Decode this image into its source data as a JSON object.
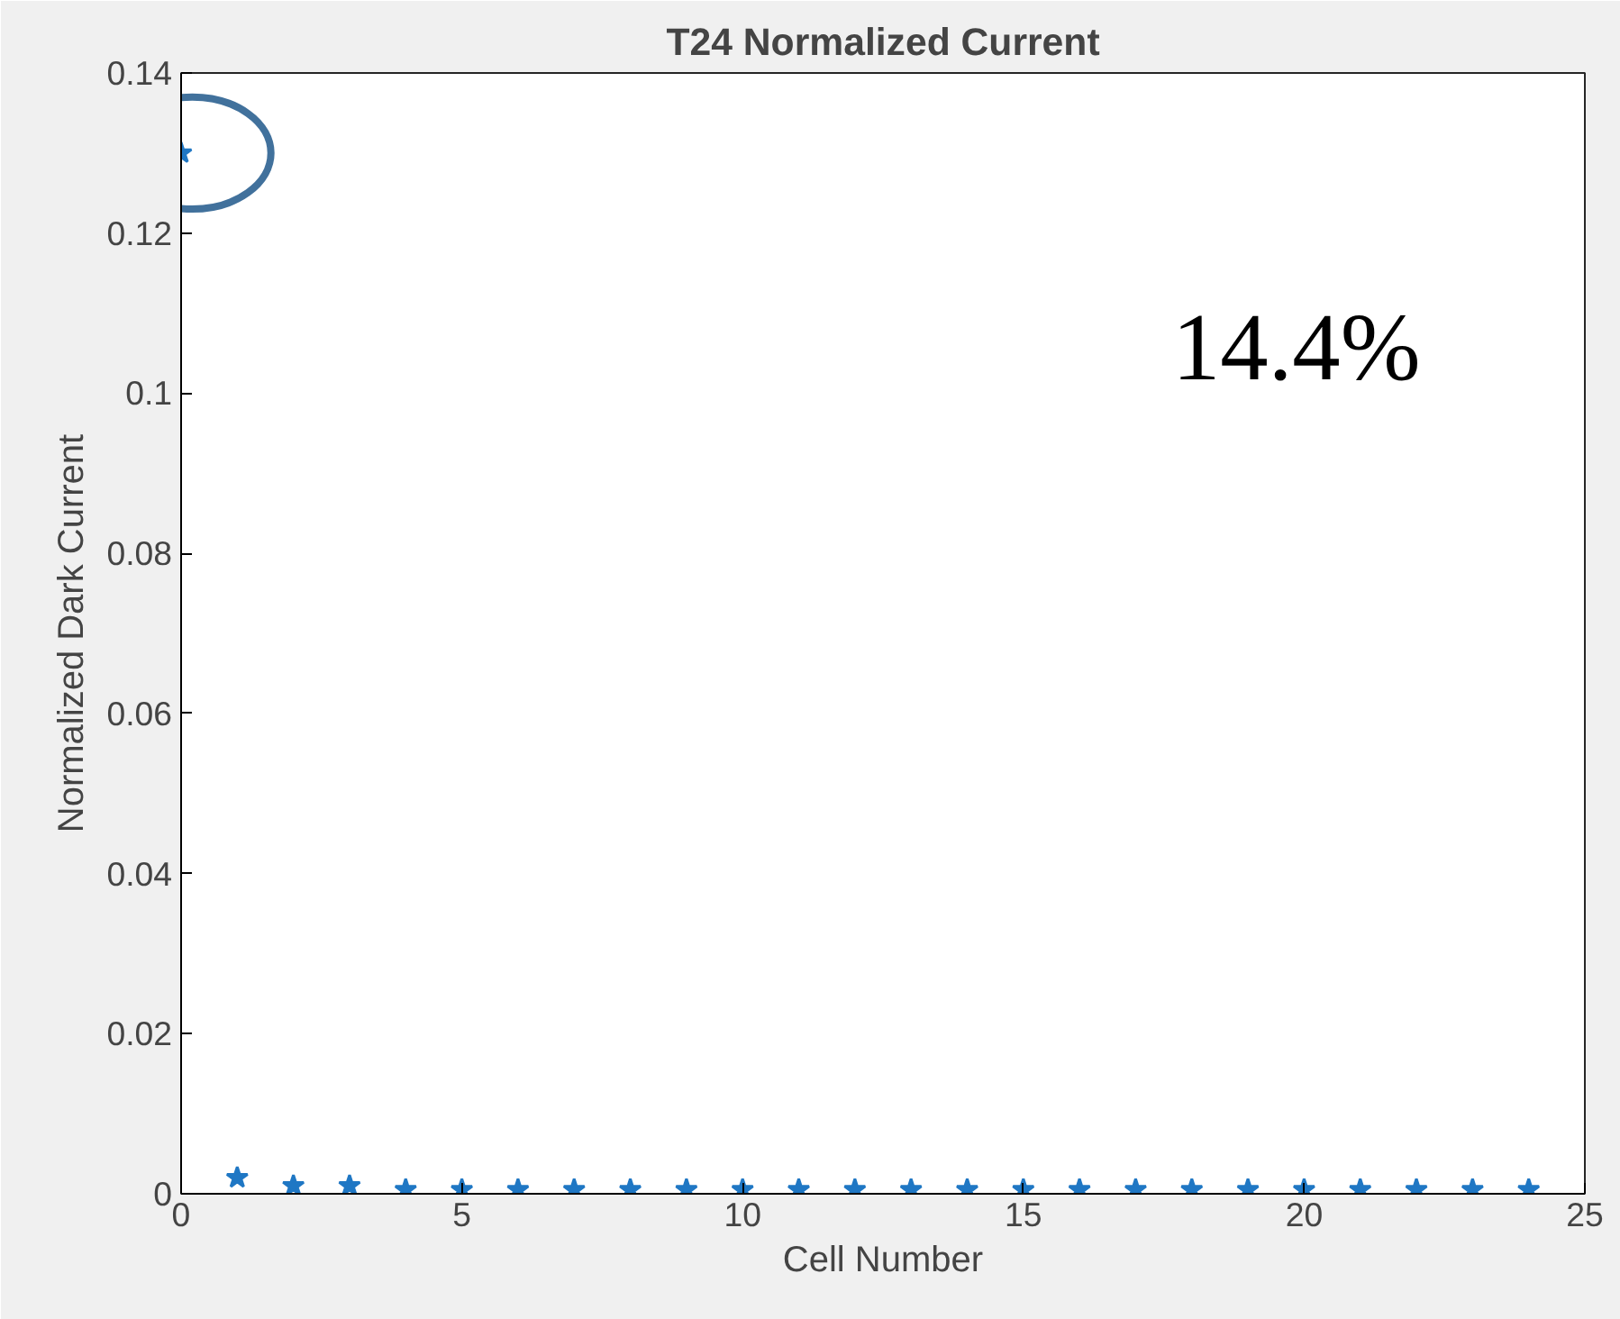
{
  "chart_data": {
    "type": "scatter",
    "title": "T24 Normalized Current",
    "xlabel": "Cell Number",
    "ylabel": "Normalized Dark Current",
    "x": [
      0,
      1,
      2,
      3,
      4,
      5,
      6,
      7,
      8,
      9,
      10,
      11,
      12,
      13,
      14,
      15,
      16,
      17,
      18,
      19,
      20,
      21,
      22,
      23,
      24
    ],
    "series": [
      {
        "color": "#1f77c4",
        "values": [
          0.13,
          0.002,
          0.001,
          0.001,
          0.0005,
          0.0005,
          0.0005,
          0.0005,
          0.0005,
          0.0005,
          0.0005,
          0.0005,
          0.0005,
          0.0005,
          0.0005,
          0.0005,
          0.0005,
          0.0005,
          0.0005,
          0.0005,
          0.0005,
          0.0005,
          0.0005,
          0.0005,
          0.0005
        ]
      }
    ],
    "xlim": [
      0,
      25
    ],
    "ylim": [
      0,
      0.14
    ],
    "xticks": [
      0,
      5,
      10,
      15,
      20,
      25
    ],
    "yticks": [
      0,
      0.02,
      0.04,
      0.06,
      0.08,
      0.1,
      0.12,
      0.14
    ],
    "marker": "star",
    "grid": false,
    "annotations": [
      "14.4%"
    ]
  }
}
